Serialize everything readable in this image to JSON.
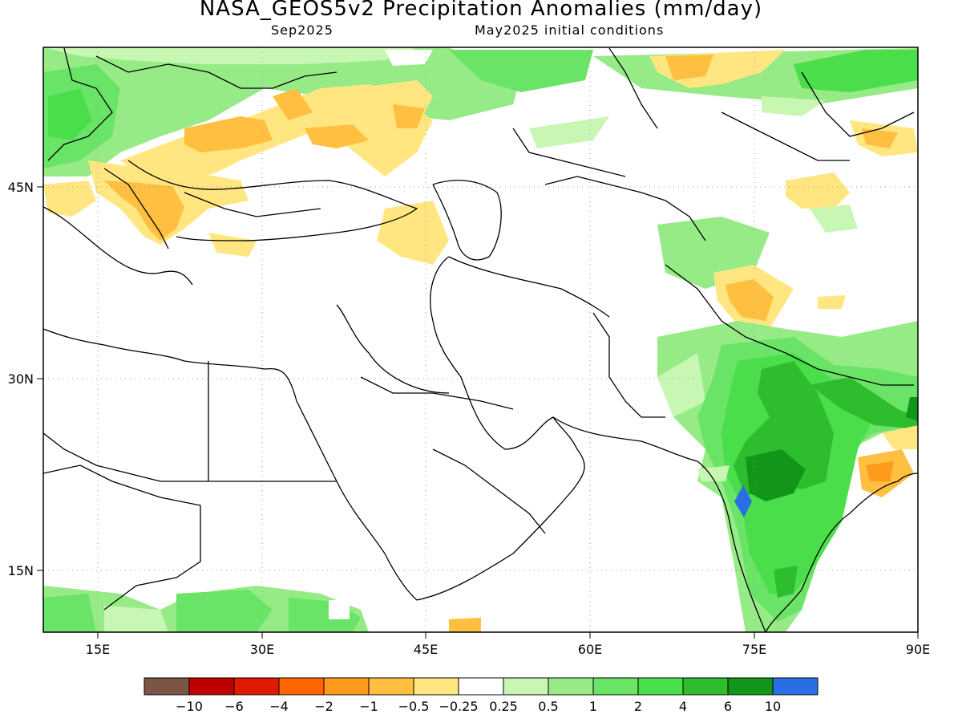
{
  "title": "NASA_GEOS5v2 Precipitation Anomalies (mm/day)",
  "subtitle_left": "Sep2025",
  "subtitle_right": "May2025 initial conditions",
  "lon_labels": [
    "15E",
    "30E",
    "45E",
    "60E",
    "75E",
    "90E"
  ],
  "lat_labels": [
    "45N",
    "30N",
    "15N"
  ],
  "legend": {
    "colors": [
      "#7b5646",
      "#bf0000",
      "#e01a00",
      "#ff6600",
      "#ff9b1a",
      "#ffbf40",
      "#ffe680",
      "#ffffff",
      "#c8f7b4",
      "#96eb87",
      "#6ae466",
      "#4ade4a",
      "#2ebd2e",
      "#11961a",
      "#2a6ee6"
    ],
    "labels": [
      "−10",
      "−6",
      "−4",
      "−2",
      "−1",
      "−0.5",
      "−0.25",
      "0.25",
      "0.5",
      "1",
      "2",
      "4",
      "6",
      "10"
    ]
  }
}
